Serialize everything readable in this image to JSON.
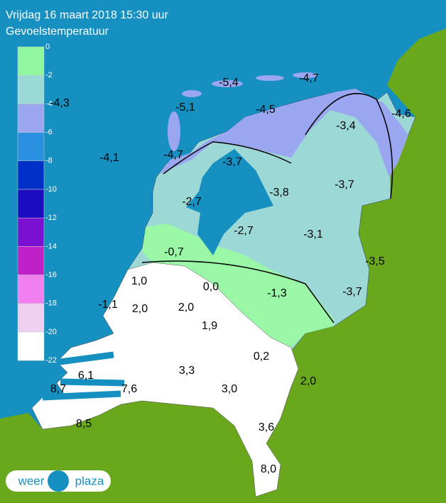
{
  "header": {
    "title": "Vrijdag 16 maart 2018 15:30 uur",
    "subtitle": "Gevoelstemperatuur"
  },
  "legend": {
    "labels": [
      "0",
      "-2",
      "-4",
      "-6",
      "-8",
      "-10",
      "-12",
      "-14",
      "-16",
      "-18",
      "-20",
      "-22"
    ]
  },
  "stations": [
    "-5,4",
    "-4,7",
    "-4,3",
    "-5,1",
    "-4,5",
    "-4,6",
    "-3,4",
    "-4,1",
    "-4,7",
    "-3,7",
    "-3,8",
    "-3,7",
    "-2,7",
    "-2,7",
    "-3,1",
    "-0,7",
    "-3,5",
    "1,0",
    "0,0",
    "-1,3",
    "-3,7",
    "-1,1",
    "2,0",
    "2,0",
    "1,9",
    "0,2",
    "3,3",
    "6,1",
    "2,0",
    "8,7",
    "7,6",
    "3,0",
    "8,5",
    "3,6",
    "8,0"
  ],
  "logo": {
    "left": "weer",
    "right": "plaza"
  }
}
